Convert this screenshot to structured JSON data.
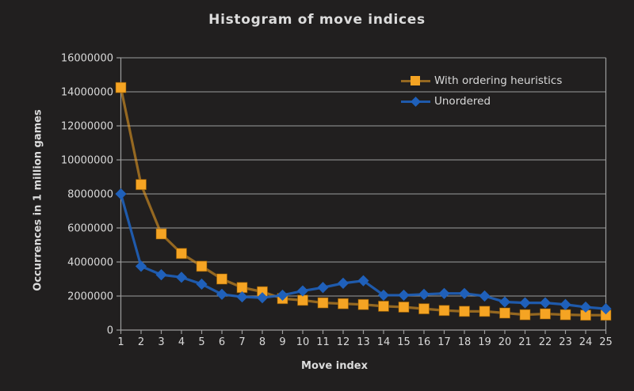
{
  "chart_data": {
    "type": "line",
    "title": "Histogram of move indices",
    "xlabel": "Move index",
    "ylabel": "Occurrences in 1 million games",
    "xlim": [
      1,
      25
    ],
    "ylim": [
      0,
      16000000
    ],
    "grid": "horizontal",
    "legend_position": "top-right-inside",
    "background_color": "#211f1f",
    "grid_color": "#9c9c9c",
    "text_color": "#d9d9d9",
    "x": [
      1,
      2,
      3,
      4,
      5,
      6,
      7,
      8,
      9,
      10,
      11,
      12,
      13,
      14,
      15,
      16,
      17,
      18,
      19,
      20,
      21,
      22,
      23,
      24,
      25
    ],
    "xtick_labels": [
      "1",
      "2",
      "3",
      "4",
      "5",
      "6",
      "7",
      "8",
      "9",
      "10",
      "11",
      "12",
      "13",
      "14",
      "15",
      "16",
      "17",
      "18",
      "19",
      "20",
      "21",
      "22",
      "23",
      "24",
      "25"
    ],
    "ytick_values": [
      0,
      2000000,
      4000000,
      6000000,
      8000000,
      10000000,
      12000000,
      14000000,
      16000000
    ],
    "ytick_labels": [
      "0",
      "2000000",
      "4000000",
      "6000000",
      "8000000",
      "10000000",
      "12000000",
      "14000000",
      "16000000"
    ],
    "series": [
      {
        "name": "With ordering heuristics",
        "marker": "square",
        "color": "#f5a423",
        "line_color": "rgba(245,164,35,0.55)",
        "values": [
          14250000,
          8550000,
          5650000,
          4500000,
          3750000,
          3000000,
          2500000,
          2250000,
          1850000,
          1750000,
          1600000,
          1550000,
          1500000,
          1400000,
          1350000,
          1250000,
          1150000,
          1100000,
          1100000,
          1000000,
          900000,
          950000,
          900000,
          875000,
          875000
        ]
      },
      {
        "name": "Unordered",
        "marker": "diamond",
        "color": "#1f60ba",
        "line_color": "rgba(31,96,186,0.9)",
        "values": [
          8000000,
          3750000,
          3250000,
          3100000,
          2700000,
          2100000,
          1950000,
          1900000,
          2050000,
          2300000,
          2500000,
          2750000,
          2900000,
          2050000,
          2050000,
          2100000,
          2150000,
          2150000,
          2000000,
          1650000,
          1600000,
          1600000,
          1500000,
          1350000,
          1250000
        ]
      }
    ]
  }
}
